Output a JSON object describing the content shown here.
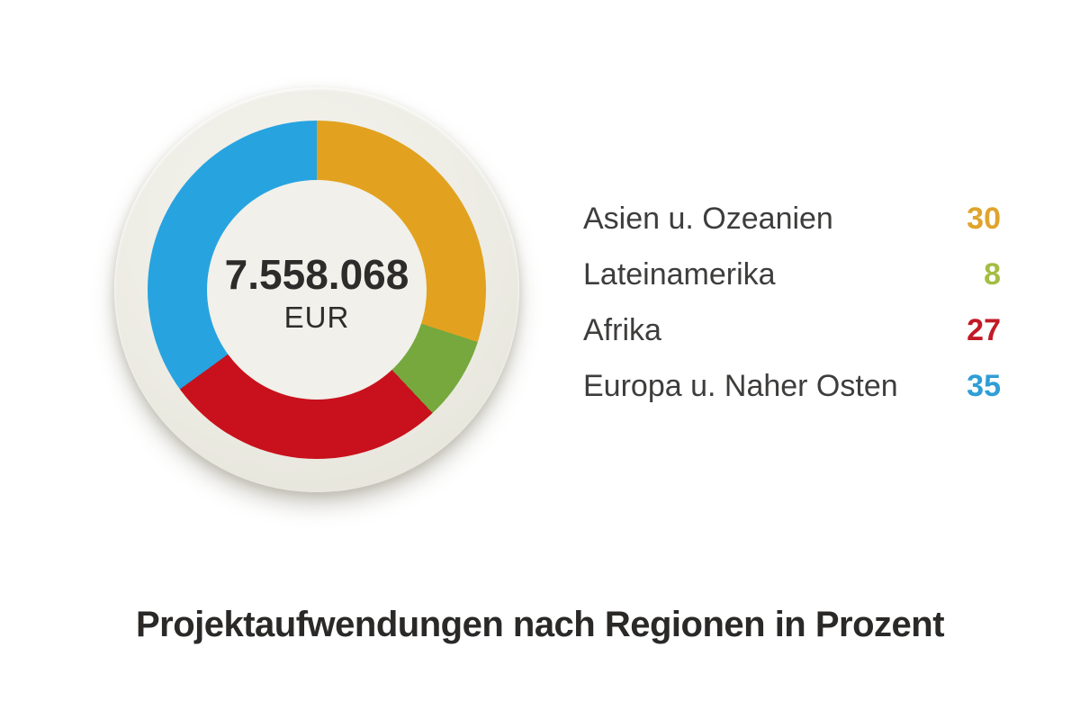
{
  "chart_data": {
    "type": "pie",
    "variant": "donut",
    "title": "Projektaufwendungen nach Regionen in Prozent",
    "center_value": "7.558.068",
    "center_unit": "EUR",
    "unit": "percent",
    "start_angle_deg": 0,
    "direction": "clockwise",
    "legend_position": "right",
    "series": [
      {
        "label": "Asien u. Ozeanien",
        "value": 30,
        "slice_color": "#e2a21f",
        "value_color": "#e0a42c"
      },
      {
        "label": "Lateinamerika",
        "value": 8,
        "slice_color": "#77a83e",
        "value_color": "#a4bd43"
      },
      {
        "label": "Afrika",
        "value": 27,
        "slice_color": "#c8111c",
        "value_color": "#c21a26"
      },
      {
        "label": "Europa u. Naher Osten",
        "value": 35,
        "slice_color": "#27a3e0",
        "value_color": "#2f9ed6"
      }
    ]
  },
  "colors": {
    "background": "#ffffff",
    "plate": "#ecebe2",
    "hole": "#f1f0ea",
    "text_dark": "#2d2c2b",
    "label": "#3e3d3c"
  }
}
